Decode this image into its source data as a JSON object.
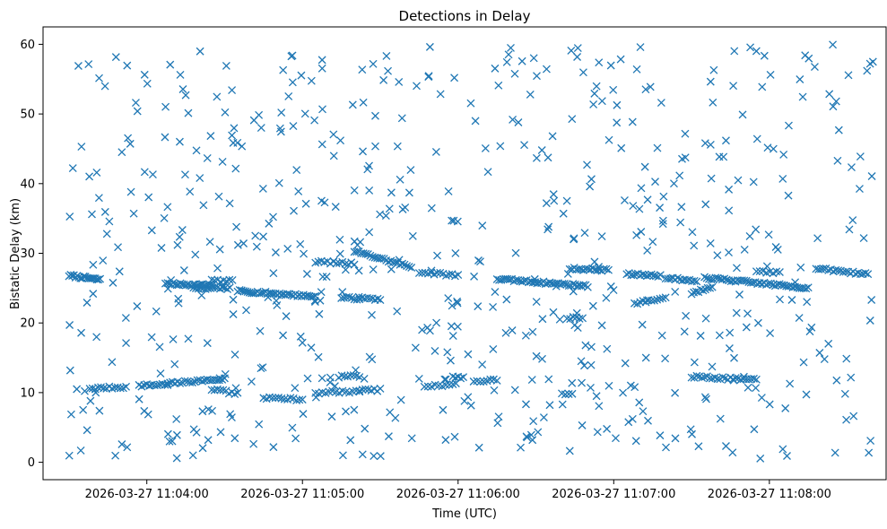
{
  "chart_data": {
    "type": "scatter",
    "title": "Detections in Delay",
    "xlabel": "Time (UTC)",
    "ylabel": "Bistatic Delay (km)",
    "x_axis_type": "time",
    "xlim": [
      "2026-03-27 11:03:20",
      "2026-03-27 11:08:45"
    ],
    "ylim": [
      -2.5,
      62.5
    ],
    "x_ticks": [
      {
        "t": "2026-03-27 11:04:00",
        "label": "2026-03-27 11:04:00"
      },
      {
        "t": "2026-03-27 11:05:00",
        "label": "2026-03-27 11:05:00"
      },
      {
        "t": "2026-03-27 11:06:00",
        "label": "2026-03-27 11:06:00"
      },
      {
        "t": "2026-03-27 11:07:00",
        "label": "2026-03-27 11:07:00"
      },
      {
        "t": "2026-03-27 11:08:00",
        "label": "2026-03-27 11:08:00"
      }
    ],
    "y_ticks": [
      0,
      10,
      20,
      30,
      40,
      50,
      60
    ],
    "grid": false,
    "marker": "x",
    "marker_color": "#1f77b4",
    "tracks": [
      {
        "t_start": "2026-03-27 11:03:30",
        "t_end": "2026-03-27 11:03:42",
        "y_start": 26.8,
        "y_end": 26.2,
        "count": 20
      },
      {
        "t_start": "2026-03-27 11:03:38",
        "t_end": "2026-03-27 11:03:52",
        "y_start": 10.6,
        "y_end": 10.8,
        "count": 14
      },
      {
        "t_start": "2026-03-27 11:03:57",
        "t_end": "2026-03-27 11:04:08",
        "y_start": 11.0,
        "y_end": 11.2,
        "count": 12
      },
      {
        "t_start": "2026-03-27 11:04:08",
        "t_end": "2026-03-27 11:04:25",
        "y_start": 25.6,
        "y_end": 25.4,
        "count": 25
      },
      {
        "t_start": "2026-03-27 11:04:08",
        "t_end": "2026-03-27 11:04:30",
        "y_start": 11.3,
        "y_end": 12.0,
        "count": 24
      },
      {
        "t_start": "2026-03-27 11:04:18",
        "t_end": "2026-03-27 11:04:32",
        "y_start": 25.0,
        "y_end": 25.0,
        "count": 16
      },
      {
        "t_start": "2026-03-27 11:04:25",
        "t_end": "2026-03-27 11:04:33",
        "y_start": 26.1,
        "y_end": 26.0,
        "count": 8
      },
      {
        "t_start": "2026-03-27 11:04:25",
        "t_end": "2026-03-27 11:04:35",
        "y_start": 10.5,
        "y_end": 9.8,
        "count": 10
      },
      {
        "t_start": "2026-03-27 11:04:35",
        "t_end": "2026-03-27 11:05:05",
        "y_start": 24.6,
        "y_end": 23.8,
        "count": 40
      },
      {
        "t_start": "2026-03-27 11:04:45",
        "t_end": "2026-03-27 11:05:00",
        "y_start": 9.3,
        "y_end": 9.0,
        "count": 14
      },
      {
        "t_start": "2026-03-27 11:05:05",
        "t_end": "2026-03-27 11:05:20",
        "y_start": 28.8,
        "y_end": 28.5,
        "count": 14
      },
      {
        "t_start": "2026-03-27 11:05:05",
        "t_end": "2026-03-27 11:05:22",
        "y_start": 10.0,
        "y_end": 10.2,
        "count": 14
      },
      {
        "t_start": "2026-03-27 11:05:15",
        "t_end": "2026-03-27 11:05:30",
        "y_start": 23.6,
        "y_end": 23.4,
        "count": 16
      },
      {
        "t_start": "2026-03-27 11:05:14",
        "t_end": "2026-03-27 11:05:22",
        "y_start": 12.3,
        "y_end": 12.4,
        "count": 8
      },
      {
        "t_start": "2026-03-27 11:05:22",
        "t_end": "2026-03-27 11:05:30",
        "y_start": 10.3,
        "y_end": 10.4,
        "count": 8
      },
      {
        "t_start": "2026-03-27 11:05:20",
        "t_end": "2026-03-27 11:05:42",
        "y_start": 30.3,
        "y_end": 28.0,
        "count": 26
      },
      {
        "t_start": "2026-03-27 11:05:45",
        "t_end": "2026-03-27 11:06:00",
        "y_start": 27.3,
        "y_end": 26.8,
        "count": 14
      },
      {
        "t_start": "2026-03-27 11:05:47",
        "t_end": "2026-03-27 11:05:58",
        "y_start": 10.9,
        "y_end": 11.2,
        "count": 9
      },
      {
        "t_start": "2026-03-27 11:05:58",
        "t_end": "2026-03-27 11:06:02",
        "y_start": 12.2,
        "y_end": 12.2,
        "count": 5
      },
      {
        "t_start": "2026-03-27 11:06:06",
        "t_end": "2026-03-27 11:06:15",
        "y_start": 11.6,
        "y_end": 11.8,
        "count": 8
      },
      {
        "t_start": "2026-03-27 11:06:15",
        "t_end": "2026-03-27 11:06:50",
        "y_start": 26.3,
        "y_end": 25.3,
        "count": 44
      },
      {
        "t_start": "2026-03-27 11:06:43",
        "t_end": "2026-03-27 11:06:58",
        "y_start": 27.8,
        "y_end": 27.6,
        "count": 18
      },
      {
        "t_start": "2026-03-27 11:06:42",
        "t_end": "2026-03-27 11:06:48",
        "y_start": 20.7,
        "y_end": 20.7,
        "count": 6
      },
      {
        "t_start": "2026-03-27 11:06:40",
        "t_end": "2026-03-27 11:06:44",
        "y_start": 9.8,
        "y_end": 9.8,
        "count": 4
      },
      {
        "t_start": "2026-03-27 11:07:05",
        "t_end": "2026-03-27 11:07:18",
        "y_start": 27.0,
        "y_end": 26.8,
        "count": 16
      },
      {
        "t_start": "2026-03-27 11:07:08",
        "t_end": "2026-03-27 11:07:20",
        "y_start": 22.8,
        "y_end": 23.6,
        "count": 12
      },
      {
        "t_start": "2026-03-27 11:07:20",
        "t_end": "2026-03-27 11:07:32",
        "y_start": 26.5,
        "y_end": 26.0,
        "count": 14
      },
      {
        "t_start": "2026-03-27 11:07:30",
        "t_end": "2026-03-27 11:07:38",
        "y_start": 24.2,
        "y_end": 25.3,
        "count": 10
      },
      {
        "t_start": "2026-03-27 11:07:30",
        "t_end": "2026-03-27 11:07:55",
        "y_start": 12.3,
        "y_end": 11.8,
        "count": 26
      },
      {
        "t_start": "2026-03-27 11:07:35",
        "t_end": "2026-03-27 11:08:15",
        "y_start": 26.5,
        "y_end": 25.0,
        "count": 48
      },
      {
        "t_start": "2026-03-27 11:07:55",
        "t_end": "2026-03-27 11:08:04",
        "y_start": 27.5,
        "y_end": 27.2,
        "count": 8
      },
      {
        "t_start": "2026-03-27 11:08:18",
        "t_end": "2026-03-27 11:08:38",
        "y_start": 27.8,
        "y_end": 27.0,
        "count": 22
      }
    ],
    "scatter": {
      "t_start": "2026-03-27 11:03:30",
      "t_end": "2026-03-27 11:08:40",
      "y_min": 0.5,
      "y_max": 60,
      "count": 620,
      "seed": 7
    }
  }
}
